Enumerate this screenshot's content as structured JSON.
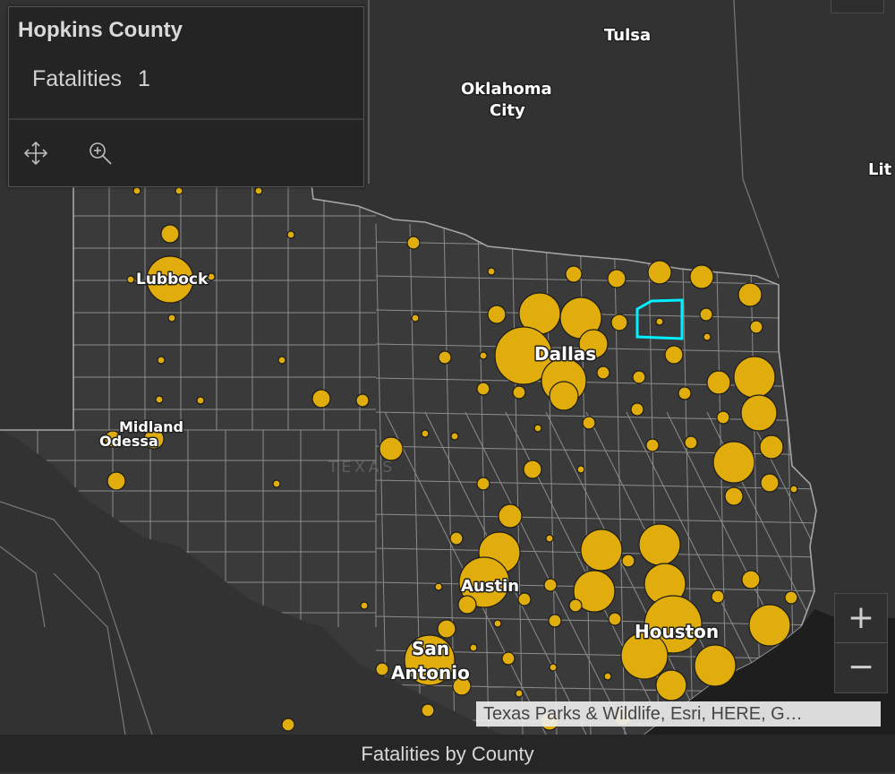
{
  "popup": {
    "title": "Hopkins County",
    "field_label": "Fatalities",
    "field_value": "1",
    "actions": [
      {
        "name": "pan-icon",
        "label": "Pan"
      },
      {
        "name": "zoom-to-icon",
        "label": "Zoom to"
      }
    ]
  },
  "map": {
    "region_label": "TEXAS",
    "cities": [
      {
        "name": "Tulsa"
      },
      {
        "name": "Oklahoma City"
      },
      {
        "name": "Lit"
      },
      {
        "name": "Lubbock"
      },
      {
        "name": "Midland"
      },
      {
        "name": "Odessa"
      },
      {
        "name": "Dallas"
      },
      {
        "name": "Austin"
      },
      {
        "name": "San Antonio"
      },
      {
        "name": "Houston"
      }
    ],
    "colors": {
      "background": "#323232",
      "bubble": "#e0ad0c",
      "selection": "#00f0ff"
    }
  },
  "zoom": {
    "in_label": "+",
    "out_label": "−"
  },
  "attribution": "Texas Parks & Wildlife, Esri, HERE, G…",
  "footer": {
    "title": "Fatalities by County"
  }
}
